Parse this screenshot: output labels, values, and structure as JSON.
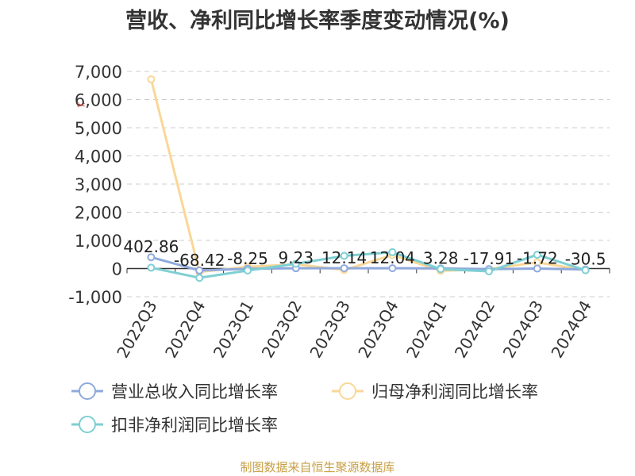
{
  "chart_data": {
    "type": "line",
    "title": "营收、净利同比增长率季度变动情况(%)",
    "categories": [
      "2022Q3",
      "2022Q4",
      "2023Q1",
      "2023Q2",
      "2023Q3",
      "2023Q4",
      "2024Q1",
      "2024Q2",
      "2024Q3",
      "2024Q4"
    ],
    "ylim": [
      -1000,
      7000
    ],
    "yticks": [
      "7,000",
      "6,000",
      "5,000",
      "4,000",
      "3,000",
      "2,000",
      "1,000",
      "0",
      "-1,000"
    ],
    "ytick_values": [
      7000,
      6000,
      5000,
      4000,
      3000,
      2000,
      1000,
      0,
      -1000
    ],
    "grid": true,
    "legend_position": "bottom",
    "series": [
      {
        "name": "营业总收入同比增长率",
        "color": "#8fa9dc",
        "values": [
          402.86,
          -68.42,
          -8.25,
          9.23,
          12.14,
          12.04,
          3.28,
          -17.91,
          -1.72,
          -30.5
        ]
      },
      {
        "name": "归母净利润同比增长率",
        "color": "#fad797",
        "values": [
          6720,
          -120,
          60,
          150,
          -50,
          480,
          -80,
          -20,
          220,
          -60
        ]
      },
      {
        "name": "扣非净利润同比增长率",
        "color": "#7ecfd3",
        "values": [
          30,
          -330,
          -70,
          170,
          450,
          580,
          -20,
          -100,
          490,
          -60
        ]
      }
    ],
    "data_labels": [
      "402.86",
      "-68.42",
      "-8.25",
      "9.23",
      "12.14",
      "12.04",
      "3.28",
      "-17.91",
      "-1.72",
      "-30.5"
    ]
  },
  "source": "制图数据来自恒生聚源数据库"
}
